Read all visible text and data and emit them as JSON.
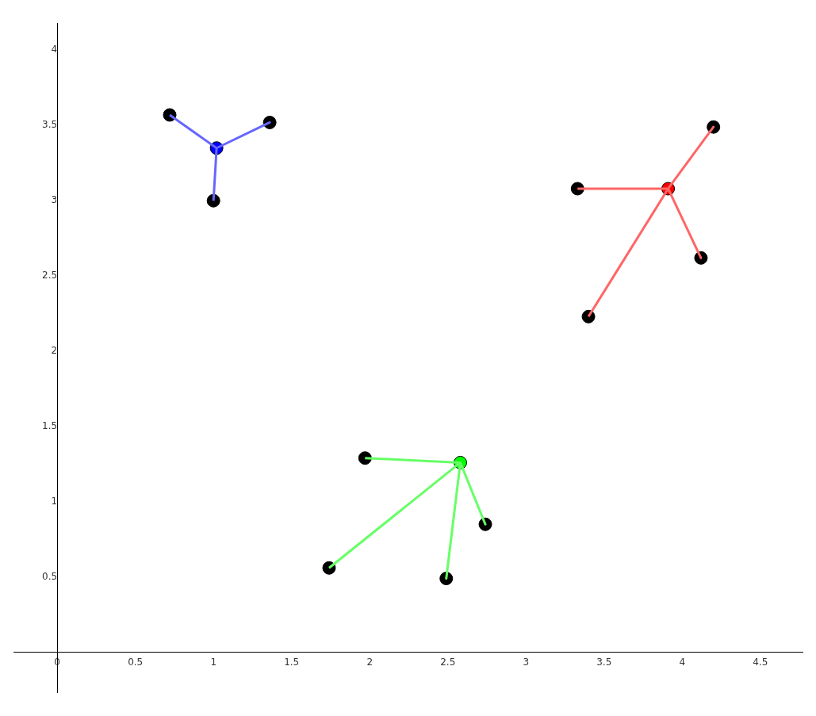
{
  "chart_data": {
    "type": "scatter",
    "xlim": [
      -0.28,
      4.77
    ],
    "ylim": [
      -0.27,
      4.18
    ],
    "xticks": [
      0,
      0.5,
      1,
      1.5,
      2,
      2.5,
      3,
      3.5,
      4,
      4.5
    ],
    "yticks": [
      0.5,
      1,
      1.5,
      2,
      2.5,
      3,
      3.5,
      4
    ],
    "grid": false,
    "legend": false,
    "marker": "circle",
    "series": [
      {
        "type": "line",
        "color": "#6666ff",
        "marker": "none",
        "x": [
          0.72,
          1.02,
          1.36,
          1.02,
          1.0
        ],
        "values": [
          3.57,
          3.35,
          3.52,
          3.35,
          3.0
        ]
      },
      {
        "type": "line",
        "color": "#ff6666",
        "marker": "none",
        "x": [
          3.33,
          3.91,
          4.2,
          3.91,
          4.12,
          3.91,
          3.4
        ],
        "values": [
          3.08,
          3.08,
          3.49,
          3.08,
          2.62,
          3.08,
          2.23
        ]
      },
      {
        "type": "line",
        "color": "#66ff66",
        "marker": "none",
        "x": [
          1.97,
          2.58,
          2.74,
          2.58,
          2.49,
          2.58,
          1.74
        ],
        "values": [
          1.29,
          1.26,
          0.85,
          1.26,
          0.49,
          1.26,
          0.56
        ]
      },
      {
        "type": "scatter",
        "color": "#000000",
        "x": [
          0.72,
          1.36,
          1.0,
          3.33,
          4.2,
          4.12,
          3.4,
          1.97,
          2.74,
          2.49,
          1.74
        ],
        "values": [
          3.57,
          3.52,
          3.0,
          3.08,
          3.49,
          2.62,
          2.23,
          1.29,
          0.85,
          0.49,
          0.56
        ]
      },
      {
        "type": "scatter",
        "color": "#0000ff",
        "x": [
          1.02
        ],
        "values": [
          3.35
        ]
      },
      {
        "type": "scatter",
        "color": "#ff0000",
        "x": [
          3.91
        ],
        "values": [
          3.08
        ]
      },
      {
        "type": "scatter",
        "color": "#00ff00",
        "x": [
          2.58
        ],
        "values": [
          1.26
        ]
      }
    ]
  }
}
